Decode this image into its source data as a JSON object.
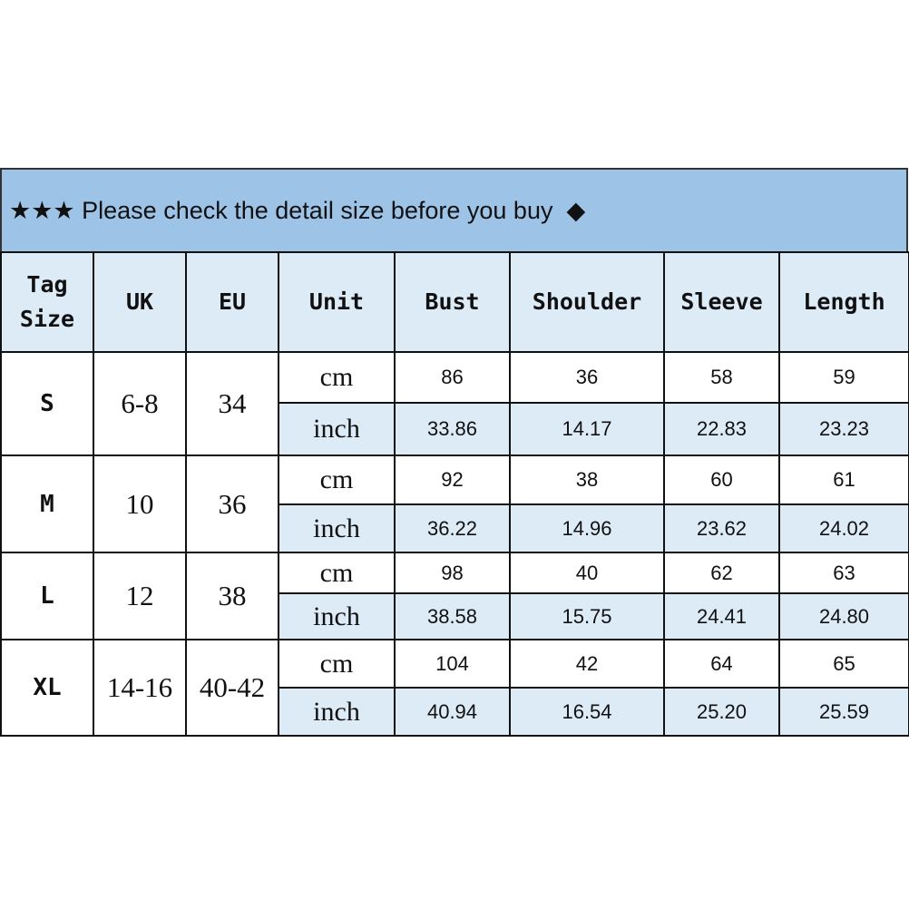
{
  "banner": {
    "icon_left": "★★★",
    "text": "Please check the detail size before you buy",
    "icon_right": "◆"
  },
  "colors": {
    "banner": "#9dc3e6",
    "header": "#ddebf7",
    "inch_row": "#ddebf7"
  },
  "headers": [
    "Tag Size",
    "UK",
    "EU",
    "Unit",
    "Bust",
    "Shoulder",
    "Sleeve",
    "Length"
  ],
  "sizes": [
    {
      "tag": "S",
      "uk": "6-8",
      "eu": "34",
      "cm": [
        "86",
        "36",
        "58",
        "59"
      ],
      "inch": [
        "33.86",
        "14.17",
        "22.83",
        "23.23"
      ]
    },
    {
      "tag": "M",
      "uk": "10",
      "eu": "36",
      "cm": [
        "92",
        "38",
        "60",
        "61"
      ],
      "inch": [
        "36.22",
        "14.96",
        "23.62",
        "24.02"
      ]
    },
    {
      "tag": "L",
      "uk": "12",
      "eu": "38",
      "cm": [
        "98",
        "40",
        "62",
        "63"
      ],
      "inch": [
        "38.58",
        "15.75",
        "24.41",
        "24.80"
      ]
    },
    {
      "tag": "XL",
      "uk": "14-16",
      "eu": "40-42",
      "cm": [
        "104",
        "42",
        "64",
        "65"
      ],
      "inch": [
        "40.94",
        "16.54",
        "25.20",
        "25.59"
      ]
    }
  ],
  "units": {
    "cm": "cm",
    "inch": "inch"
  }
}
